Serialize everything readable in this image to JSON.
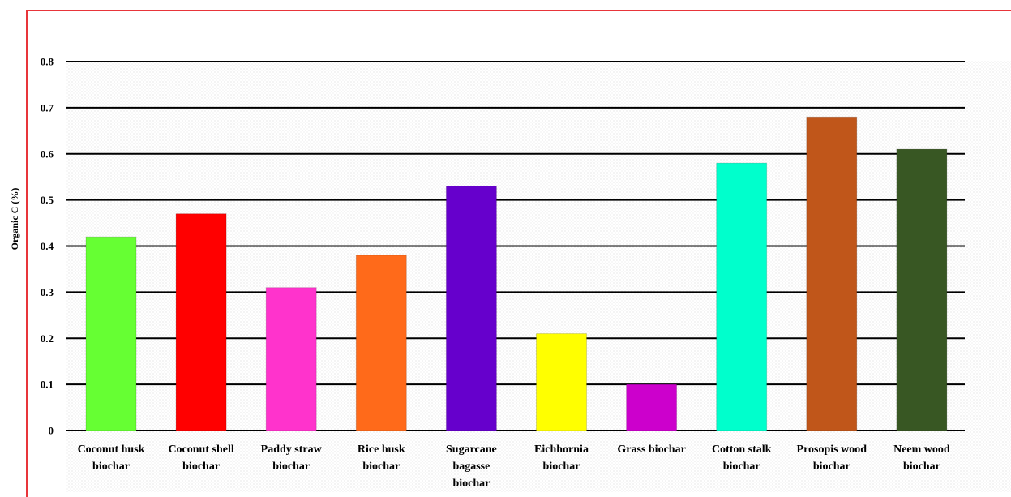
{
  "chart_data": {
    "type": "bar",
    "categories": [
      [
        "Coconut husk",
        "biochar"
      ],
      [
        "Coconut shell",
        "biochar"
      ],
      [
        "Paddy straw",
        "biochar"
      ],
      [
        "Rice husk",
        "biochar"
      ],
      [
        "Sugarcane",
        "bagasse",
        "biochar"
      ],
      [
        "Eichhornia",
        "biochar"
      ],
      [
        "Grass biochar"
      ],
      [
        "Cotton stalk",
        "biochar"
      ],
      [
        "Prosopis wood",
        "biochar"
      ],
      [
        "Neem wood",
        "biochar"
      ]
    ],
    "values": [
      0.42,
      0.47,
      0.31,
      0.38,
      0.53,
      0.21,
      0.1,
      0.58,
      0.68,
      0.61
    ],
    "colors": [
      "#66ff33",
      "#ff0000",
      "#ff33cc",
      "#ff6a1a",
      "#6600cc",
      "#ffff00",
      "#cc00cc",
      "#00ffcc",
      "#c0561a",
      "#385723"
    ],
    "title": "",
    "xlabel": "",
    "ylabel": "Organic C (%)",
    "ylim": [
      0,
      0.8
    ],
    "yticks": [
      "0",
      "0.1",
      "0.2",
      "0.3",
      "0.4",
      "0.5",
      "0.6",
      "0.7",
      "0.8"
    ],
    "grid": true,
    "legend": "none"
  }
}
